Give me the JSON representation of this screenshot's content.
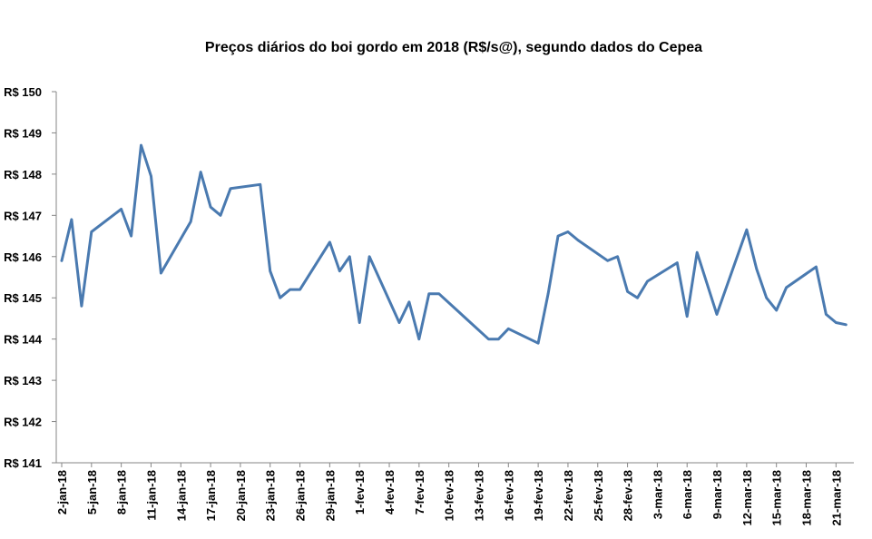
{
  "chart_data": {
    "type": "line",
    "title": "Preços diários do boi gordo em 2018 (R$/s@), segundo dados do Cepea",
    "xlabel": "",
    "ylabel": "",
    "ylim": [
      141,
      150
    ],
    "yticks": [
      141,
      142,
      143,
      144,
      145,
      146,
      147,
      148,
      149,
      150
    ],
    "ytick_prefix": "R$ ",
    "xlim": [
      "2018-01-02",
      "2018-03-22"
    ],
    "xtick_labels": [
      {
        "date": "2018-01-02",
        "label": "2-jan-18"
      },
      {
        "date": "2018-01-05",
        "label": "5-jan-18"
      },
      {
        "date": "2018-01-08",
        "label": "8-jan-18"
      },
      {
        "date": "2018-01-11",
        "label": "11-jan-18"
      },
      {
        "date": "2018-01-14",
        "label": "14-jan-18"
      },
      {
        "date": "2018-01-17",
        "label": "17-jan-18"
      },
      {
        "date": "2018-01-20",
        "label": "20-jan-18"
      },
      {
        "date": "2018-01-23",
        "label": "23-jan-18"
      },
      {
        "date": "2018-01-26",
        "label": "26-jan-18"
      },
      {
        "date": "2018-01-29",
        "label": "29-jan-18"
      },
      {
        "date": "2018-02-01",
        "label": "1-fev-18"
      },
      {
        "date": "2018-02-04",
        "label": "4-fev-18"
      },
      {
        "date": "2018-02-07",
        "label": "7-fev-18"
      },
      {
        "date": "2018-02-10",
        "label": "10-fev-18"
      },
      {
        "date": "2018-02-13",
        "label": "13-fev-18"
      },
      {
        "date": "2018-02-16",
        "label": "16-fev-18"
      },
      {
        "date": "2018-02-19",
        "label": "19-fev-18"
      },
      {
        "date": "2018-02-22",
        "label": "22-fev-18"
      },
      {
        "date": "2018-02-25",
        "label": "25-fev-18"
      },
      {
        "date": "2018-02-28",
        "label": "28-fev-18"
      },
      {
        "date": "2018-03-03",
        "label": "3-mar-18"
      },
      {
        "date": "2018-03-06",
        "label": "6-mar-18"
      },
      {
        "date": "2018-03-09",
        "label": "9-mar-18"
      },
      {
        "date": "2018-03-12",
        "label": "12-mar-18"
      },
      {
        "date": "2018-03-15",
        "label": "15-mar-18"
      },
      {
        "date": "2018-03-18",
        "label": "18-mar-18"
      },
      {
        "date": "2018-03-21",
        "label": "21-mar-18"
      }
    ],
    "grid": false,
    "legend": "none",
    "line_color": "#4a7ab0",
    "series": [
      {
        "name": "",
        "points": [
          {
            "x": "2018-01-02",
            "y": 145.9
          },
          {
            "x": "2018-01-03",
            "y": 146.9
          },
          {
            "x": "2018-01-04",
            "y": 144.8
          },
          {
            "x": "2018-01-05",
            "y": 146.6
          },
          {
            "x": "2018-01-08",
            "y": 147.15
          },
          {
            "x": "2018-01-09",
            "y": 146.5
          },
          {
            "x": "2018-01-10",
            "y": 148.7
          },
          {
            "x": "2018-01-11",
            "y": 147.95
          },
          {
            "x": "2018-01-12",
            "y": 145.6
          },
          {
            "x": "2018-01-15",
            "y": 146.85
          },
          {
            "x": "2018-01-16",
            "y": 148.05
          },
          {
            "x": "2018-01-17",
            "y": 147.2
          },
          {
            "x": "2018-01-18",
            "y": 147.0
          },
          {
            "x": "2018-01-19",
            "y": 147.65
          },
          {
            "x": "2018-01-22",
            "y": 147.75
          },
          {
            "x": "2018-01-23",
            "y": 145.65
          },
          {
            "x": "2018-01-24",
            "y": 145.0
          },
          {
            "x": "2018-01-25",
            "y": 145.2
          },
          {
            "x": "2018-01-26",
            "y": 145.2
          },
          {
            "x": "2018-01-29",
            "y": 146.35
          },
          {
            "x": "2018-01-30",
            "y": 145.65
          },
          {
            "x": "2018-01-31",
            "y": 146.0
          },
          {
            "x": "2018-02-01",
            "y": 144.4
          },
          {
            "x": "2018-02-02",
            "y": 146.0
          },
          {
            "x": "2018-02-05",
            "y": 144.4
          },
          {
            "x": "2018-02-06",
            "y": 144.9
          },
          {
            "x": "2018-02-07",
            "y": 144.0
          },
          {
            "x": "2018-02-08",
            "y": 145.1
          },
          {
            "x": "2018-02-09",
            "y": 145.1
          },
          {
            "x": "2018-02-14",
            "y": 144.0
          },
          {
            "x": "2018-02-15",
            "y": 144.0
          },
          {
            "x": "2018-02-16",
            "y": 144.25
          },
          {
            "x": "2018-02-19",
            "y": 143.9
          },
          {
            "x": "2018-02-20",
            "y": 145.1
          },
          {
            "x": "2018-02-21",
            "y": 146.5
          },
          {
            "x": "2018-02-22",
            "y": 146.6
          },
          {
            "x": "2018-02-23",
            "y": 146.4
          },
          {
            "x": "2018-02-26",
            "y": 145.9
          },
          {
            "x": "2018-02-27",
            "y": 146.0
          },
          {
            "x": "2018-02-28",
            "y": 145.15
          },
          {
            "x": "2018-03-01",
            "y": 145.0
          },
          {
            "x": "2018-03-02",
            "y": 145.4
          },
          {
            "x": "2018-03-05",
            "y": 145.85
          },
          {
            "x": "2018-03-06",
            "y": 144.55
          },
          {
            "x": "2018-03-07",
            "y": 146.1
          },
          {
            "x": "2018-03-09",
            "y": 144.6
          },
          {
            "x": "2018-03-12",
            "y": 146.65
          },
          {
            "x": "2018-03-13",
            "y": 145.7
          },
          {
            "x": "2018-03-14",
            "y": 145.0
          },
          {
            "x": "2018-03-15",
            "y": 144.7
          },
          {
            "x": "2018-03-16",
            "y": 145.25
          },
          {
            "x": "2018-03-19",
            "y": 145.75
          },
          {
            "x": "2018-03-20",
            "y": 144.6
          },
          {
            "x": "2018-03-21",
            "y": 144.4
          },
          {
            "x": "2018-03-22",
            "y": 144.35
          }
        ]
      }
    ]
  }
}
